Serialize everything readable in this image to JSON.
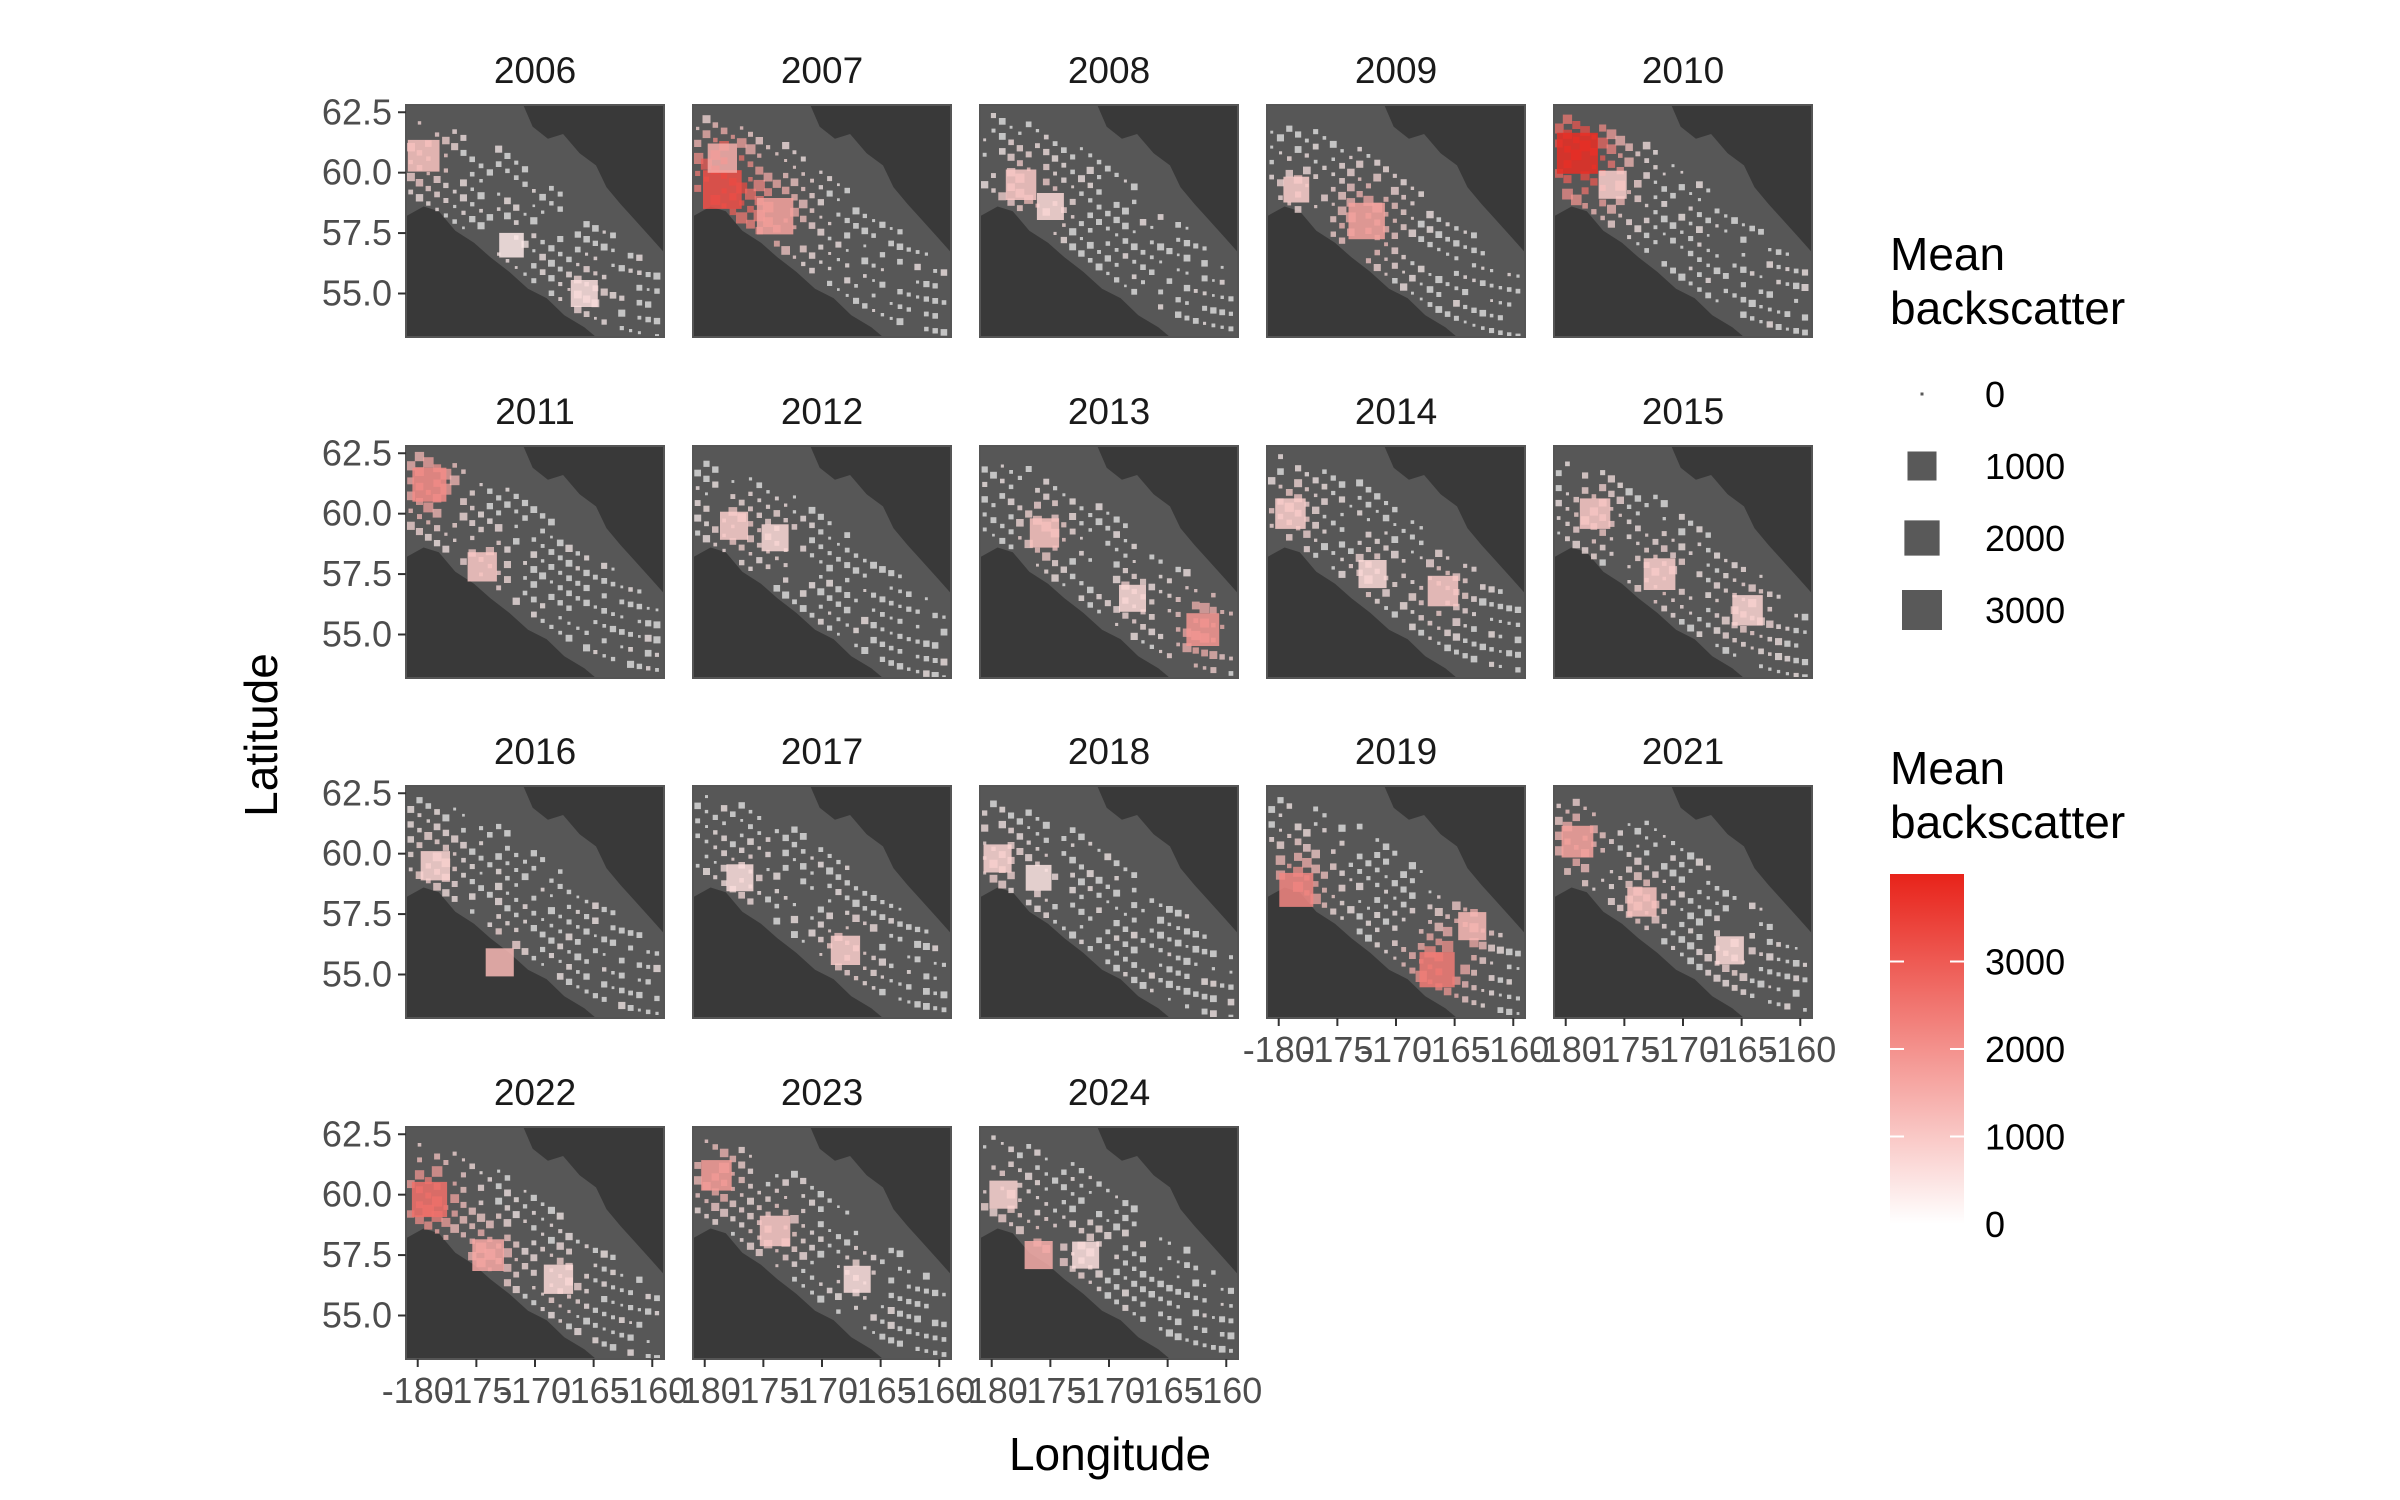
{
  "chart_data": {
    "type": "heatmap",
    "title": "",
    "xlabel": "Longitude",
    "ylabel": "Latitude",
    "xlim": [
      -181,
      -159
    ],
    "ylim": [
      53.2,
      62.8
    ],
    "x_ticks": [
      -180,
      -175,
      -170,
      -165,
      -160
    ],
    "y_ticks": [
      55.0,
      57.5,
      60.0,
      62.5
    ],
    "x_tick_labels": [
      "-180",
      "-175",
      "-170",
      "-165",
      "-160"
    ],
    "y_tick_labels": [
      "55.0",
      "57.5",
      "60.0",
      "62.5"
    ],
    "facet_variable": "year",
    "panels": [
      {
        "year": "2006",
        "hotspots": [
          {
            "lon": -179.5,
            "lat": 60.7,
            "value": 1100,
            "size": 1.6
          },
          {
            "lon": -165.8,
            "lat": 55.0,
            "value": 600,
            "size": 1.2
          },
          {
            "lon": -172.0,
            "lat": 57.0,
            "value": 400,
            "size": 1.0
          }
        ]
      },
      {
        "year": "2007",
        "hotspots": [
          {
            "lon": -178.5,
            "lat": 59.3,
            "value": 3200,
            "size": 2.2
          },
          {
            "lon": -174.0,
            "lat": 58.2,
            "value": 1700,
            "size": 2.0
          },
          {
            "lon": -178.5,
            "lat": 60.6,
            "value": 1500,
            "size": 1.4
          }
        ]
      },
      {
        "year": "2008",
        "hotspots": [
          {
            "lon": -177.5,
            "lat": 59.5,
            "value": 1000,
            "size": 1.5
          },
          {
            "lon": -175.0,
            "lat": 58.6,
            "value": 700,
            "size": 1.2
          }
        ]
      },
      {
        "year": "2009",
        "hotspots": [
          {
            "lon": -172.5,
            "lat": 58.0,
            "value": 1700,
            "size": 2.0
          },
          {
            "lon": -178.5,
            "lat": 59.3,
            "value": 900,
            "size": 1.1
          }
        ]
      },
      {
        "year": "2010",
        "hotspots": [
          {
            "lon": -179.0,
            "lat": 60.8,
            "value": 3800,
            "size": 2.4
          },
          {
            "lon": -176.0,
            "lat": 59.5,
            "value": 900,
            "size": 1.3
          }
        ]
      },
      {
        "year": "2011",
        "hotspots": [
          {
            "lon": -179.0,
            "lat": 61.2,
            "value": 2100,
            "size": 1.8
          },
          {
            "lon": -174.5,
            "lat": 57.8,
            "value": 1000,
            "size": 1.4
          }
        ]
      },
      {
        "year": "2012",
        "hotspots": [
          {
            "lon": -177.5,
            "lat": 59.5,
            "value": 900,
            "size": 1.3
          },
          {
            "lon": -174.0,
            "lat": 59.0,
            "value": 700,
            "size": 1.2
          }
        ]
      },
      {
        "year": "2013",
        "hotspots": [
          {
            "lon": -162.0,
            "lat": 55.2,
            "value": 1900,
            "size": 1.7
          },
          {
            "lon": -175.5,
            "lat": 59.2,
            "value": 1100,
            "size": 1.4
          },
          {
            "lon": -168.0,
            "lat": 56.5,
            "value": 700,
            "size": 1.2
          }
        ]
      },
      {
        "year": "2014",
        "hotspots": [
          {
            "lon": -179.0,
            "lat": 60.0,
            "value": 900,
            "size": 1.5
          },
          {
            "lon": -166.0,
            "lat": 56.8,
            "value": 1000,
            "size": 1.5
          },
          {
            "lon": -172.0,
            "lat": 57.5,
            "value": 700,
            "size": 1.3
          }
        ]
      },
      {
        "year": "2015",
        "hotspots": [
          {
            "lon": -177.5,
            "lat": 60.0,
            "value": 1000,
            "size": 1.5
          },
          {
            "lon": -172.0,
            "lat": 57.5,
            "value": 900,
            "size": 1.6
          },
          {
            "lon": -164.5,
            "lat": 56.0,
            "value": 800,
            "size": 1.5
          }
        ]
      },
      {
        "year": "2016",
        "hotspots": [
          {
            "lon": -178.5,
            "lat": 59.5,
            "value": 800,
            "size": 1.4
          },
          {
            "lon": -173.0,
            "lat": 55.5,
            "value": 1300,
            "size": 1.3
          }
        ]
      },
      {
        "year": "2017",
        "hotspots": [
          {
            "lon": -168.0,
            "lat": 56.0,
            "value": 900,
            "size": 1.4
          },
          {
            "lon": -177.0,
            "lat": 59.0,
            "value": 600,
            "size": 1.2
          }
        ]
      },
      {
        "year": "2018",
        "hotspots": [
          {
            "lon": -179.5,
            "lat": 59.8,
            "value": 800,
            "size": 1.3
          },
          {
            "lon": -176.0,
            "lat": 59.0,
            "value": 500,
            "size": 1.1
          }
        ]
      },
      {
        "year": "2019",
        "hotspots": [
          {
            "lon": -178.5,
            "lat": 58.5,
            "value": 2200,
            "size": 1.8
          },
          {
            "lon": -166.5,
            "lat": 55.2,
            "value": 2400,
            "size": 1.9
          },
          {
            "lon": -163.5,
            "lat": 57.0,
            "value": 1300,
            "size": 1.3
          }
        ]
      },
      {
        "year": "2021",
        "hotspots": [
          {
            "lon": -179.0,
            "lat": 60.5,
            "value": 1700,
            "size": 1.6
          },
          {
            "lon": -173.5,
            "lat": 58.0,
            "value": 1100,
            "size": 1.4
          },
          {
            "lon": -166.0,
            "lat": 56.0,
            "value": 700,
            "size": 1.3
          }
        ]
      },
      {
        "year": "2022",
        "hotspots": [
          {
            "lon": -179.0,
            "lat": 59.8,
            "value": 2600,
            "size": 1.9
          },
          {
            "lon": -174.0,
            "lat": 57.5,
            "value": 1600,
            "size": 1.6
          },
          {
            "lon": -168.0,
            "lat": 56.5,
            "value": 700,
            "size": 1.4
          }
        ]
      },
      {
        "year": "2023",
        "hotspots": [
          {
            "lon": -179.0,
            "lat": 60.8,
            "value": 1800,
            "size": 1.5
          },
          {
            "lon": -174.0,
            "lat": 58.5,
            "value": 1000,
            "size": 1.5
          },
          {
            "lon": -167.0,
            "lat": 56.5,
            "value": 600,
            "size": 1.2
          }
        ]
      },
      {
        "year": "2024",
        "hotspots": [
          {
            "lon": -176.0,
            "lat": 57.5,
            "value": 1500,
            "size": 1.3
          },
          {
            "lon": -179.0,
            "lat": 60.0,
            "value": 800,
            "size": 1.3
          },
          {
            "lon": -172.0,
            "lat": 57.5,
            "value": 600,
            "size": 1.2
          }
        ]
      }
    ],
    "legends": [
      {
        "type": "size",
        "title": [
          "Mean",
          "backscatter"
        ],
        "values": [
          0,
          1000,
          2000,
          3000
        ],
        "labels": [
          "0",
          "1000",
          "2000",
          "3000"
        ]
      },
      {
        "type": "color",
        "title": [
          "Mean",
          "backscatter"
        ],
        "range": [
          0,
          4000
        ],
        "breaks": [
          0,
          1000,
          2000,
          3000
        ],
        "labels": [
          "0",
          "1000",
          "2000",
          "3000"
        ],
        "low_color": "#ffffff",
        "high_color": "#e8231a"
      }
    ],
    "colors": {
      "panel_background": "#575757",
      "land": "#393939",
      "grid_cell_low": "#ffffff",
      "grid_cell_high": "#e8231a",
      "empty_cell": "#d7d7d7",
      "size_key": "#595959",
      "panel_border": "#555555"
    }
  }
}
